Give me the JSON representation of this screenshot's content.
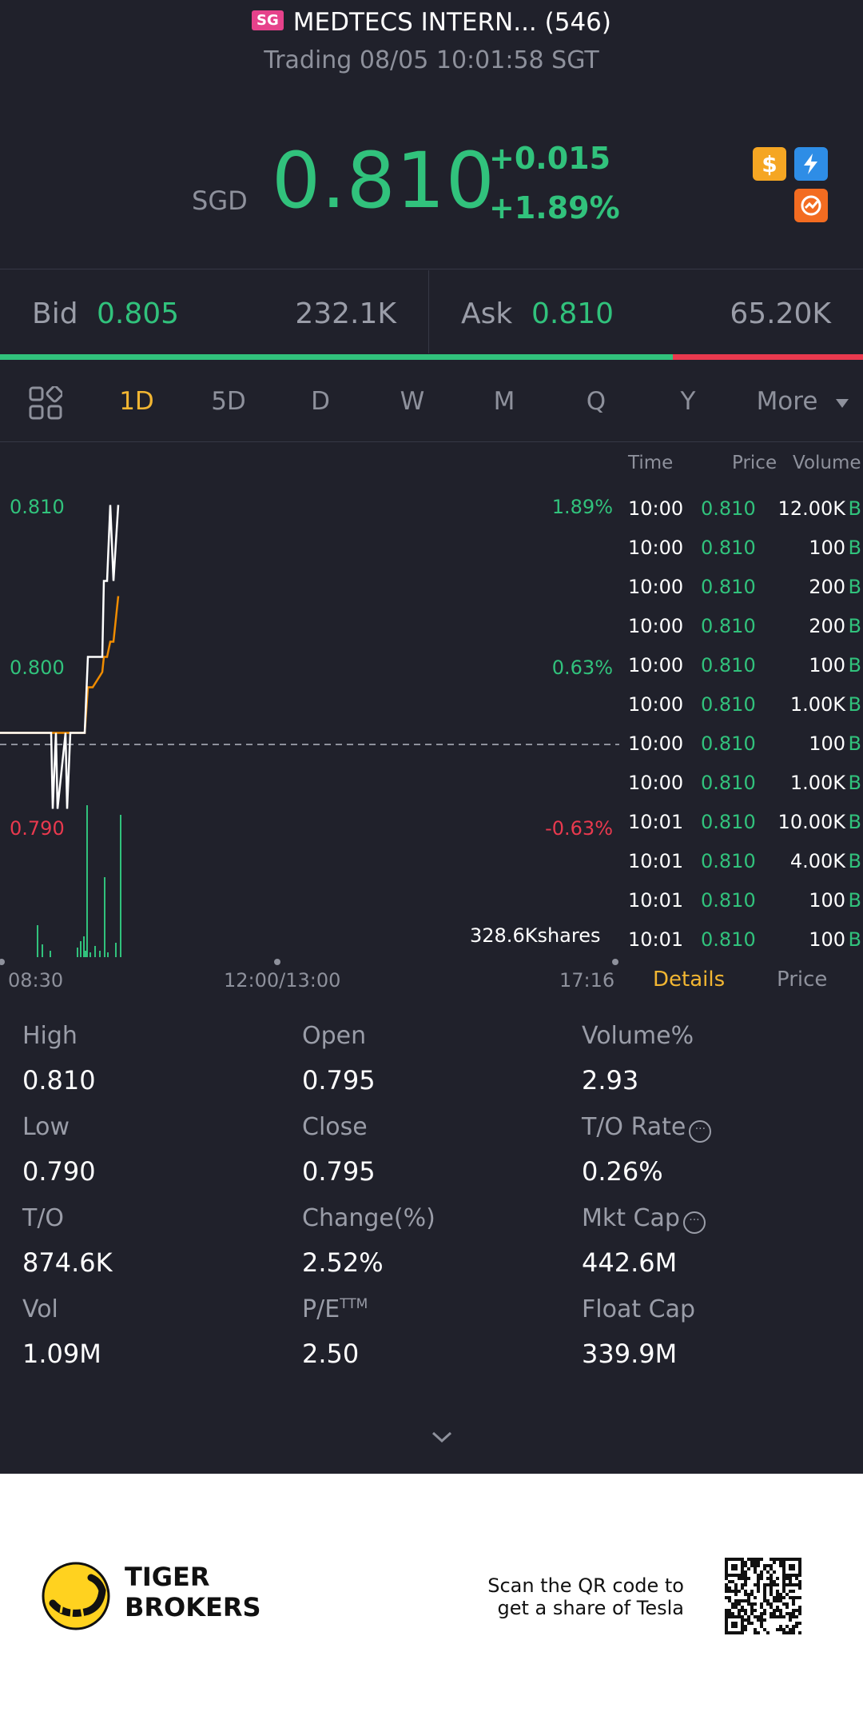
{
  "header": {
    "market_badge": "SG",
    "title": "MEDTECS INTERN... (546)",
    "status": "Trading 08/05 10:01:58 SGT"
  },
  "quote": {
    "currency": "SGD",
    "price": "0.810",
    "change": "+0.015",
    "change_pct": "+1.89%",
    "icons": [
      "dollar-icon",
      "flash-icon",
      "chart-icon"
    ]
  },
  "bid_ask": {
    "bid_label": "Bid",
    "bid_price": "0.805",
    "bid_volume": "232.1K",
    "ask_label": "Ask",
    "ask_price": "0.810",
    "ask_volume": "65.20K",
    "bid_ratio": 0.78
  },
  "periods": {
    "tabs": [
      "1D",
      "5D",
      "D",
      "W",
      "M",
      "Q",
      "Y"
    ],
    "active": "1D",
    "more_label": "More"
  },
  "chart_data": {
    "type": "line",
    "y_labels": [
      "0.810",
      "0.800",
      "0.790"
    ],
    "pct_labels": [
      "1.89%",
      "0.63%",
      "-0.63%"
    ],
    "x_labels": [
      "08:30",
      "12:00/13:00",
      "17:16"
    ],
    "prev_close": 0.795,
    "ylim": [
      0.7895,
      0.8105
    ],
    "volume_label": "328.6Kshares",
    "series": [
      {
        "values": [
          0.795,
          0.795,
          0.795,
          0.795,
          0.79,
          0.795,
          0.79,
          0.795,
          0.79,
          0.795,
          0.795,
          0.8,
          0.8,
          0.8,
          0.805,
          0.805,
          0.81,
          0.805,
          0.81
        ]
      },
      {
        "values": [
          0.795,
          0.795,
          0.795,
          0.795,
          0.795,
          0.795,
          0.795,
          0.795,
          0.795,
          0.795,
          0.795,
          0.798,
          0.798,
          0.799,
          0.8,
          0.8,
          0.801,
          0.801,
          0.804
        ]
      }
    ]
  },
  "ticks": {
    "headers": {
      "time": "Time",
      "price": "Price",
      "volume": "Volume"
    },
    "rows": [
      {
        "time": "10:00",
        "price": "0.810",
        "volume": "12.00K",
        "side": "B"
      },
      {
        "time": "10:00",
        "price": "0.810",
        "volume": "100",
        "side": "B"
      },
      {
        "time": "10:00",
        "price": "0.810",
        "volume": "200",
        "side": "B"
      },
      {
        "time": "10:00",
        "price": "0.810",
        "volume": "200",
        "side": "B"
      },
      {
        "time": "10:00",
        "price": "0.810",
        "volume": "100",
        "side": "B"
      },
      {
        "time": "10:00",
        "price": "0.810",
        "volume": "1.00K",
        "side": "B"
      },
      {
        "time": "10:00",
        "price": "0.810",
        "volume": "100",
        "side": "B"
      },
      {
        "time": "10:00",
        "price": "0.810",
        "volume": "1.00K",
        "side": "B"
      },
      {
        "time": "10:01",
        "price": "0.810",
        "volume": "10.00K",
        "side": "B"
      },
      {
        "time": "10:01",
        "price": "0.810",
        "volume": "4.00K",
        "side": "B"
      },
      {
        "time": "10:01",
        "price": "0.810",
        "volume": "100",
        "side": "B"
      },
      {
        "time": "10:01",
        "price": "0.810",
        "volume": "100",
        "side": "B"
      }
    ],
    "tab_details": "Details",
    "tab_price": "Price"
  },
  "stats": {
    "high": {
      "label": "High",
      "value": "0.810"
    },
    "open": {
      "label": "Open",
      "value": "0.795"
    },
    "volume_pct": {
      "label": "Volume%",
      "value": "2.93"
    },
    "low": {
      "label": "Low",
      "value": "0.790"
    },
    "close": {
      "label": "Close",
      "value": "0.795"
    },
    "to_rate": {
      "label": "T/O Rate",
      "value": "0.26%"
    },
    "to": {
      "label": "T/O",
      "value": "874.6K"
    },
    "change_pct": {
      "label": "Change(%)",
      "value": "2.52%"
    },
    "mkt_cap": {
      "label": "Mkt Cap",
      "value": "442.6M"
    },
    "vol": {
      "label": "Vol",
      "value": "1.09M"
    },
    "pe": {
      "label": "P/E",
      "sup": "TTM",
      "value": "2.50"
    },
    "float_cap": {
      "label": "Float Cap",
      "value": "339.9M"
    }
  },
  "footer": {
    "brand_line1": "TIGER",
    "brand_line2": "BROKERS",
    "scan_line1": "Scan the QR code to",
    "scan_line2": "get a share of Tesla"
  },
  "colors": {
    "up": "#31c27c",
    "down": "#e9394e",
    "accent": "#f2b632",
    "background": "#20212b"
  }
}
